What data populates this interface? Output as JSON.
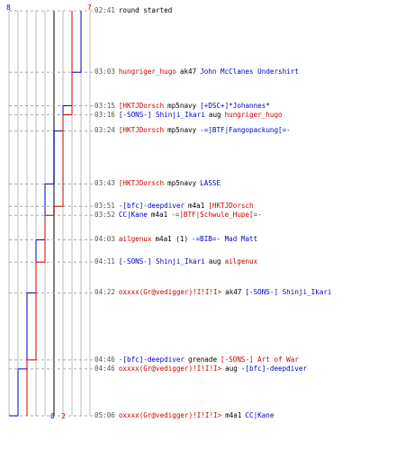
{
  "colors": {
    "blue": "#0000cc",
    "red": "#cc0000",
    "black": "#000000",
    "grid": "#bbbbbb",
    "dash": "#aaaaaa"
  },
  "counts": {
    "blue_start": "8",
    "red_start": "7",
    "blue_end": "0",
    "red_end": "2"
  },
  "events": [
    {
      "time": "02:41",
      "parts": [
        {
          "text": "round started",
          "team": "neutral"
        }
      ]
    },
    {
      "time": "03:03",
      "parts": [
        {
          "text": "hungriger_hugo",
          "team": "red"
        },
        {
          "text": "ak47",
          "team": "neutral"
        },
        {
          "text": "John McClanes Undershirt",
          "team": "blue"
        }
      ]
    },
    {
      "time": "03:15",
      "parts": [
        {
          "text": "[HKTJDorsch",
          "team": "red"
        },
        {
          "text": "mp5navy",
          "team": "neutral"
        },
        {
          "text": "[+DSC+]*Johannes*",
          "team": "blue"
        }
      ]
    },
    {
      "time": "03:16",
      "parts": [
        {
          "text": "[-SONS-] Shinji_Ikari",
          "team": "blue"
        },
        {
          "text": "aug",
          "team": "neutral"
        },
        {
          "text": "hungriger_hugo",
          "team": "red"
        }
      ]
    },
    {
      "time": "03:24",
      "parts": [
        {
          "text": "[HKTJDorsch",
          "team": "red"
        },
        {
          "text": "mp5navy",
          "team": "neutral"
        },
        {
          "text": "-=]BTF|Fangopackung[=-",
          "team": "blue"
        }
      ]
    },
    {
      "time": "03:43",
      "parts": [
        {
          "text": "[HKTJDorsch",
          "team": "red"
        },
        {
          "text": "mp5navy",
          "team": "neutral"
        },
        {
          "text": "LASSE",
          "team": "blue"
        }
      ]
    },
    {
      "time": "03:51",
      "parts": [
        {
          "text": "-[bfc]-deepdiver",
          "team": "blue"
        },
        {
          "text": "m4a1",
          "team": "neutral"
        },
        {
          "text": "[HKTJDorsch",
          "team": "red"
        }
      ]
    },
    {
      "time": "03:52",
      "parts": [
        {
          "text": "CC|Kane",
          "team": "blue"
        },
        {
          "text": "m4a1",
          "team": "neutral"
        },
        {
          "text": "-=]BTF|Schwule_Hupe[=-",
          "team": "red"
        }
      ]
    },
    {
      "time": "04:03",
      "parts": [
        {
          "text": "ailgenux",
          "team": "red"
        },
        {
          "text": "m4a1 (1)",
          "team": "neutral"
        },
        {
          "text": "-=BIB=- Mad Matt",
          "team": "blue"
        }
      ]
    },
    {
      "time": "04:11",
      "parts": [
        {
          "text": "[-SONS-] Shinji_Ikari",
          "team": "blue"
        },
        {
          "text": "aug",
          "team": "neutral"
        },
        {
          "text": "ailgenux",
          "team": "red"
        }
      ]
    },
    {
      "time": "04:22",
      "parts": [
        {
          "text": "oxxxx(Gr@vedigger)!I!I!I>",
          "team": "red"
        },
        {
          "text": "ak47",
          "team": "neutral"
        },
        {
          "text": "[-SONS-] Shinji_Ikari",
          "team": "blue"
        }
      ]
    },
    {
      "time": "04:46",
      "parts": [
        {
          "text": "-[bfc]-deepdiver",
          "team": "blue"
        },
        {
          "text": "grenade",
          "team": "neutral"
        },
        {
          "text": "[-SONS-] Art of War",
          "team": "red"
        }
      ]
    },
    {
      "time": "04:46",
      "parts": [
        {
          "text": "oxxxx(Gr@vedigger)!I!I!I>",
          "team": "red"
        },
        {
          "text": "aug",
          "team": "neutral"
        },
        {
          "text": "-[bfc]-deepdiver",
          "team": "blue"
        }
      ]
    },
    {
      "time": "05:06",
      "parts": [
        {
          "text": "oxxxx(Gr@vedigger)!I!I!I>",
          "team": "red"
        },
        {
          "text": "m4a1",
          "team": "neutral"
        },
        {
          "text": "CC|Kane",
          "team": "blue"
        }
      ]
    }
  ]
}
